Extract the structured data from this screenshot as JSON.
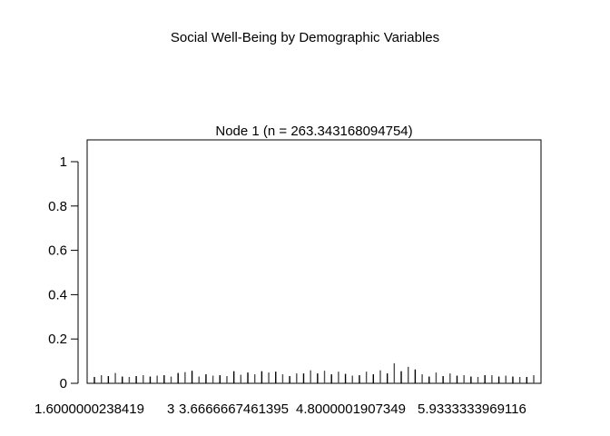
{
  "page_title": "Social Well-Being by Demographic Variables",
  "chart_data": {
    "type": "bar",
    "title": "Node 1 (n = 263.343168094754)",
    "xlabel": "",
    "ylabel": "",
    "ylim": [
      0,
      1.1
    ],
    "yticks": [
      "0",
      "0.2",
      "0.4",
      "0.6",
      "0.8",
      "1"
    ],
    "xtick_labels": [
      "1.6000000238419",
      "3",
      "3.6666667461395",
      "4.8000001907349",
      "5.9333333969116"
    ],
    "grid": false,
    "bar_color": "#4d4d4d",
    "values": [
      0.004,
      0.012,
      0.008,
      0.022,
      0.006,
      0.004,
      0.008,
      0.012,
      0.006,
      0.01,
      0.012,
      0.006,
      0.022,
      0.026,
      0.032,
      0.006,
      0.016,
      0.01,
      0.012,
      0.008,
      0.03,
      0.014,
      0.024,
      0.016,
      0.03,
      0.024,
      0.028,
      0.016,
      0.008,
      0.02,
      0.02,
      0.034,
      0.02,
      0.032,
      0.016,
      0.028,
      0.018,
      0.01,
      0.012,
      0.028,
      0.016,
      0.034,
      0.02,
      0.066,
      0.03,
      0.05,
      0.038,
      0.016,
      0.006,
      0.024,
      0.008,
      0.02,
      0.01,
      0.012,
      0.006,
      0.004,
      0.012,
      0.012,
      0.006,
      0.01,
      0.006,
      0.004,
      0.004,
      0.012
    ]
  }
}
